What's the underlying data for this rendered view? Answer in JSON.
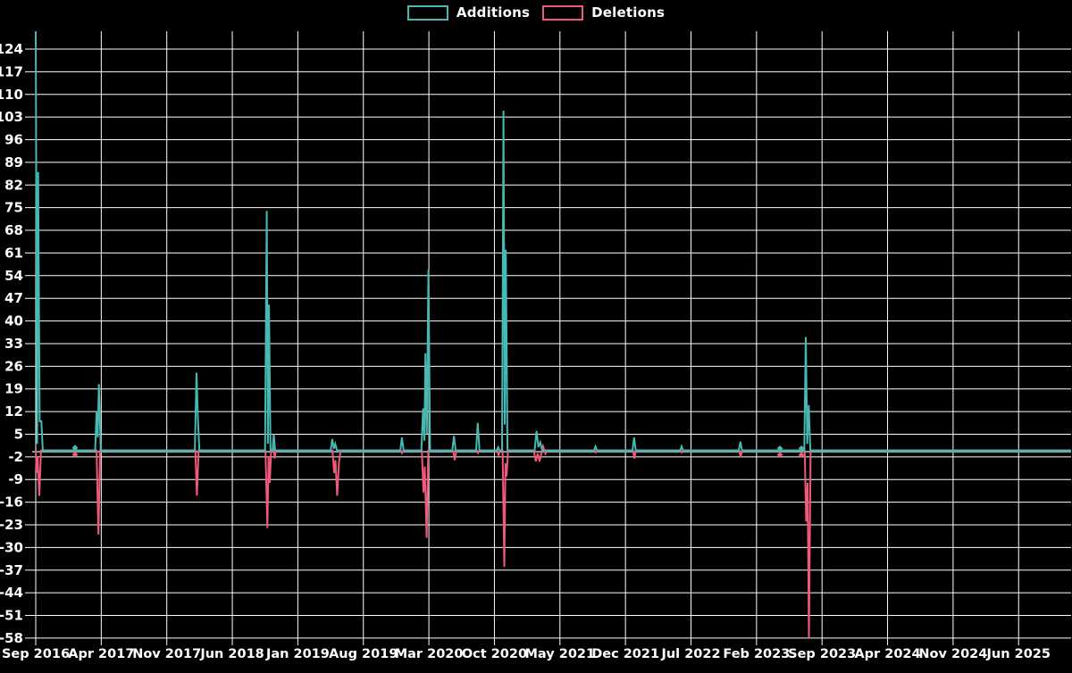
{
  "legend": {
    "additions_label": "Additions",
    "deletions_label": "Deletions"
  },
  "colors": {
    "background": "#000000",
    "grid": "#ffffff",
    "text": "#ffffff",
    "additions": "#45b9b2",
    "deletions": "#f0597a",
    "zero_axis": "#87a5a6"
  },
  "chart_data": {
    "type": "line",
    "title": "",
    "xlabel": "",
    "ylabel": "",
    "grid": true,
    "legend_position": "top-center",
    "ylim": [
      -58,
      129
    ],
    "x_unit": "months since Sep 2016",
    "xticks": [
      {
        "m": 0,
        "label": "Sep 2016"
      },
      {
        "m": 7,
        "label": "Apr 2017"
      },
      {
        "m": 14,
        "label": "Nov 2017"
      },
      {
        "m": 21,
        "label": "Jun 2018"
      },
      {
        "m": 28,
        "label": "Jan 2019"
      },
      {
        "m": 35,
        "label": "Aug 2019"
      },
      {
        "m": 42,
        "label": "Mar 2020"
      },
      {
        "m": 49,
        "label": "Oct 2020"
      },
      {
        "m": 56,
        "label": "May 2021"
      },
      {
        "m": 63,
        "label": "Dec 2021"
      },
      {
        "m": 70,
        "label": "Jul 2022"
      },
      {
        "m": 77,
        "label": "Feb 2023"
      },
      {
        "m": 84,
        "label": "Sep 2023"
      },
      {
        "m": 91,
        "label": "Apr 2024"
      },
      {
        "m": 98,
        "label": "Nov 2024"
      },
      {
        "m": 105,
        "label": "Jun 2025"
      }
    ],
    "yticks": [
      124,
      117,
      110,
      103,
      96,
      89,
      82,
      75,
      68,
      61,
      54,
      47,
      40,
      33,
      26,
      19,
      12,
      5,
      -2,
      -9,
      -16,
      -23,
      -30,
      -37,
      -44,
      -51,
      -58
    ],
    "series": [
      {
        "name": "Additions",
        "color": "#45b9b2",
        "points": [
          [
            0,
            130
          ],
          [
            0.15,
            2
          ],
          [
            0.26,
            86
          ],
          [
            0.42,
            9
          ],
          [
            0.6,
            9
          ],
          [
            0.75,
            0
          ],
          [
            6.35,
            0
          ],
          [
            6.5,
            12
          ],
          [
            6.62,
            4
          ],
          [
            6.75,
            20.5
          ],
          [
            6.95,
            0
          ],
          [
            17.0,
            0
          ],
          [
            17.18,
            24
          ],
          [
            17.32,
            10
          ],
          [
            17.48,
            0
          ],
          [
            24.5,
            0
          ],
          [
            24.68,
            74
          ],
          [
            24.8,
            2
          ],
          [
            24.92,
            45
          ],
          [
            25.08,
            0
          ],
          [
            25.3,
            0
          ],
          [
            25.42,
            5
          ],
          [
            25.58,
            0
          ],
          [
            31.5,
            0
          ],
          [
            31.68,
            3.5
          ],
          [
            31.85,
            0.5
          ],
          [
            32.0,
            2
          ],
          [
            32.18,
            0
          ],
          [
            38.95,
            0
          ],
          [
            39.12,
            4
          ],
          [
            39.3,
            0
          ],
          [
            41.2,
            0
          ],
          [
            41.38,
            13
          ],
          [
            41.52,
            3
          ],
          [
            41.63,
            30
          ],
          [
            41.78,
            5
          ],
          [
            41.95,
            56
          ],
          [
            42.12,
            0
          ],
          [
            44.5,
            0
          ],
          [
            44.68,
            4.5
          ],
          [
            44.85,
            0
          ],
          [
            47.05,
            0
          ],
          [
            47.22,
            8.5
          ],
          [
            47.4,
            0
          ],
          [
            49.25,
            0
          ],
          [
            49.4,
            1
          ],
          [
            49.55,
            0
          ],
          [
            49.82,
            0
          ],
          [
            49.97,
            105
          ],
          [
            50.1,
            8
          ],
          [
            50.22,
            62
          ],
          [
            50.4,
            0
          ],
          [
            53.3,
            0
          ],
          [
            53.5,
            6
          ],
          [
            53.7,
            1
          ],
          [
            53.9,
            2.5
          ],
          [
            54.1,
            0
          ],
          [
            59.65,
            0
          ],
          [
            59.8,
            1.2
          ],
          [
            59.95,
            0
          ],
          [
            63.75,
            0
          ],
          [
            63.92,
            4
          ],
          [
            64.1,
            0
          ],
          [
            68.85,
            0
          ],
          [
            69.0,
            1.2
          ],
          [
            69.15,
            0
          ],
          [
            75.1,
            0
          ],
          [
            75.28,
            2.7
          ],
          [
            75.45,
            0
          ],
          [
            82.1,
            0
          ],
          [
            82.26,
            35
          ],
          [
            82.42,
            2
          ],
          [
            82.58,
            14
          ],
          [
            82.75,
            0
          ],
          [
            110.6,
            0
          ]
        ]
      },
      {
        "name": "Deletions",
        "color": "#f0597a",
        "points": [
          [
            0,
            0
          ],
          [
            0.1,
            -7
          ],
          [
            0.2,
            -2
          ],
          [
            0.38,
            -14
          ],
          [
            0.56,
            0
          ],
          [
            6.5,
            0
          ],
          [
            6.7,
            -26
          ],
          [
            6.88,
            0
          ],
          [
            17.05,
            0
          ],
          [
            17.22,
            -14
          ],
          [
            17.4,
            0
          ],
          [
            24.55,
            0
          ],
          [
            24.75,
            -24
          ],
          [
            24.88,
            -2
          ],
          [
            25.0,
            -10
          ],
          [
            25.15,
            0
          ],
          [
            25.32,
            0
          ],
          [
            25.44,
            1
          ],
          [
            25.52,
            -2.5
          ],
          [
            25.62,
            0
          ],
          [
            31.7,
            0
          ],
          [
            31.88,
            -7
          ],
          [
            32.02,
            -3
          ],
          [
            32.2,
            -14
          ],
          [
            32.4,
            -3.5
          ],
          [
            32.58,
            0
          ],
          [
            39.0,
            0
          ],
          [
            39.13,
            -0.8
          ],
          [
            39.28,
            0
          ],
          [
            41.25,
            0
          ],
          [
            41.42,
            -13
          ],
          [
            41.56,
            -5
          ],
          [
            41.76,
            -27
          ],
          [
            41.93,
            0
          ],
          [
            44.6,
            0
          ],
          [
            44.76,
            -3
          ],
          [
            44.95,
            0
          ],
          [
            47.12,
            0
          ],
          [
            47.24,
            -0.8
          ],
          [
            47.38,
            0
          ],
          [
            49.3,
            0
          ],
          [
            49.45,
            -1.5
          ],
          [
            49.6,
            0
          ],
          [
            49.87,
            0
          ],
          [
            50.05,
            -36
          ],
          [
            50.18,
            -4
          ],
          [
            50.3,
            -8
          ],
          [
            50.46,
            0
          ],
          [
            53.2,
            0
          ],
          [
            53.42,
            -3.4
          ],
          [
            53.62,
            -1
          ],
          [
            53.82,
            -3.4
          ],
          [
            54.05,
            -0.5
          ],
          [
            54.2,
            1.3
          ],
          [
            54.45,
            -1
          ],
          [
            54.62,
            0
          ],
          [
            59.7,
            0
          ],
          [
            59.83,
            -0.6
          ],
          [
            59.96,
            0
          ],
          [
            63.8,
            0
          ],
          [
            63.95,
            -2.5
          ],
          [
            64.12,
            0
          ],
          [
            68.9,
            0
          ],
          [
            69.02,
            -0.6
          ],
          [
            69.16,
            0
          ],
          [
            75.15,
            0
          ],
          [
            75.3,
            -2
          ],
          [
            75.47,
            0
          ],
          [
            82.15,
            0
          ],
          [
            82.3,
            -22
          ],
          [
            82.45,
            -10
          ],
          [
            82.6,
            -58
          ],
          [
            82.78,
            0
          ],
          [
            110.6,
            0
          ]
        ]
      }
    ],
    "markers": [
      {
        "series": "Additions",
        "m": 4.2,
        "v": 0.8
      },
      {
        "series": "Deletions",
        "m": 4.2,
        "v": -1.3
      },
      {
        "series": "Additions",
        "m": 79.5,
        "v": 0.6
      },
      {
        "series": "Deletions",
        "m": 79.5,
        "v": -1.4
      },
      {
        "series": "Additions",
        "m": 81.8,
        "v": 0.6
      },
      {
        "series": "Deletions",
        "m": 81.8,
        "v": -1.4
      }
    ]
  }
}
